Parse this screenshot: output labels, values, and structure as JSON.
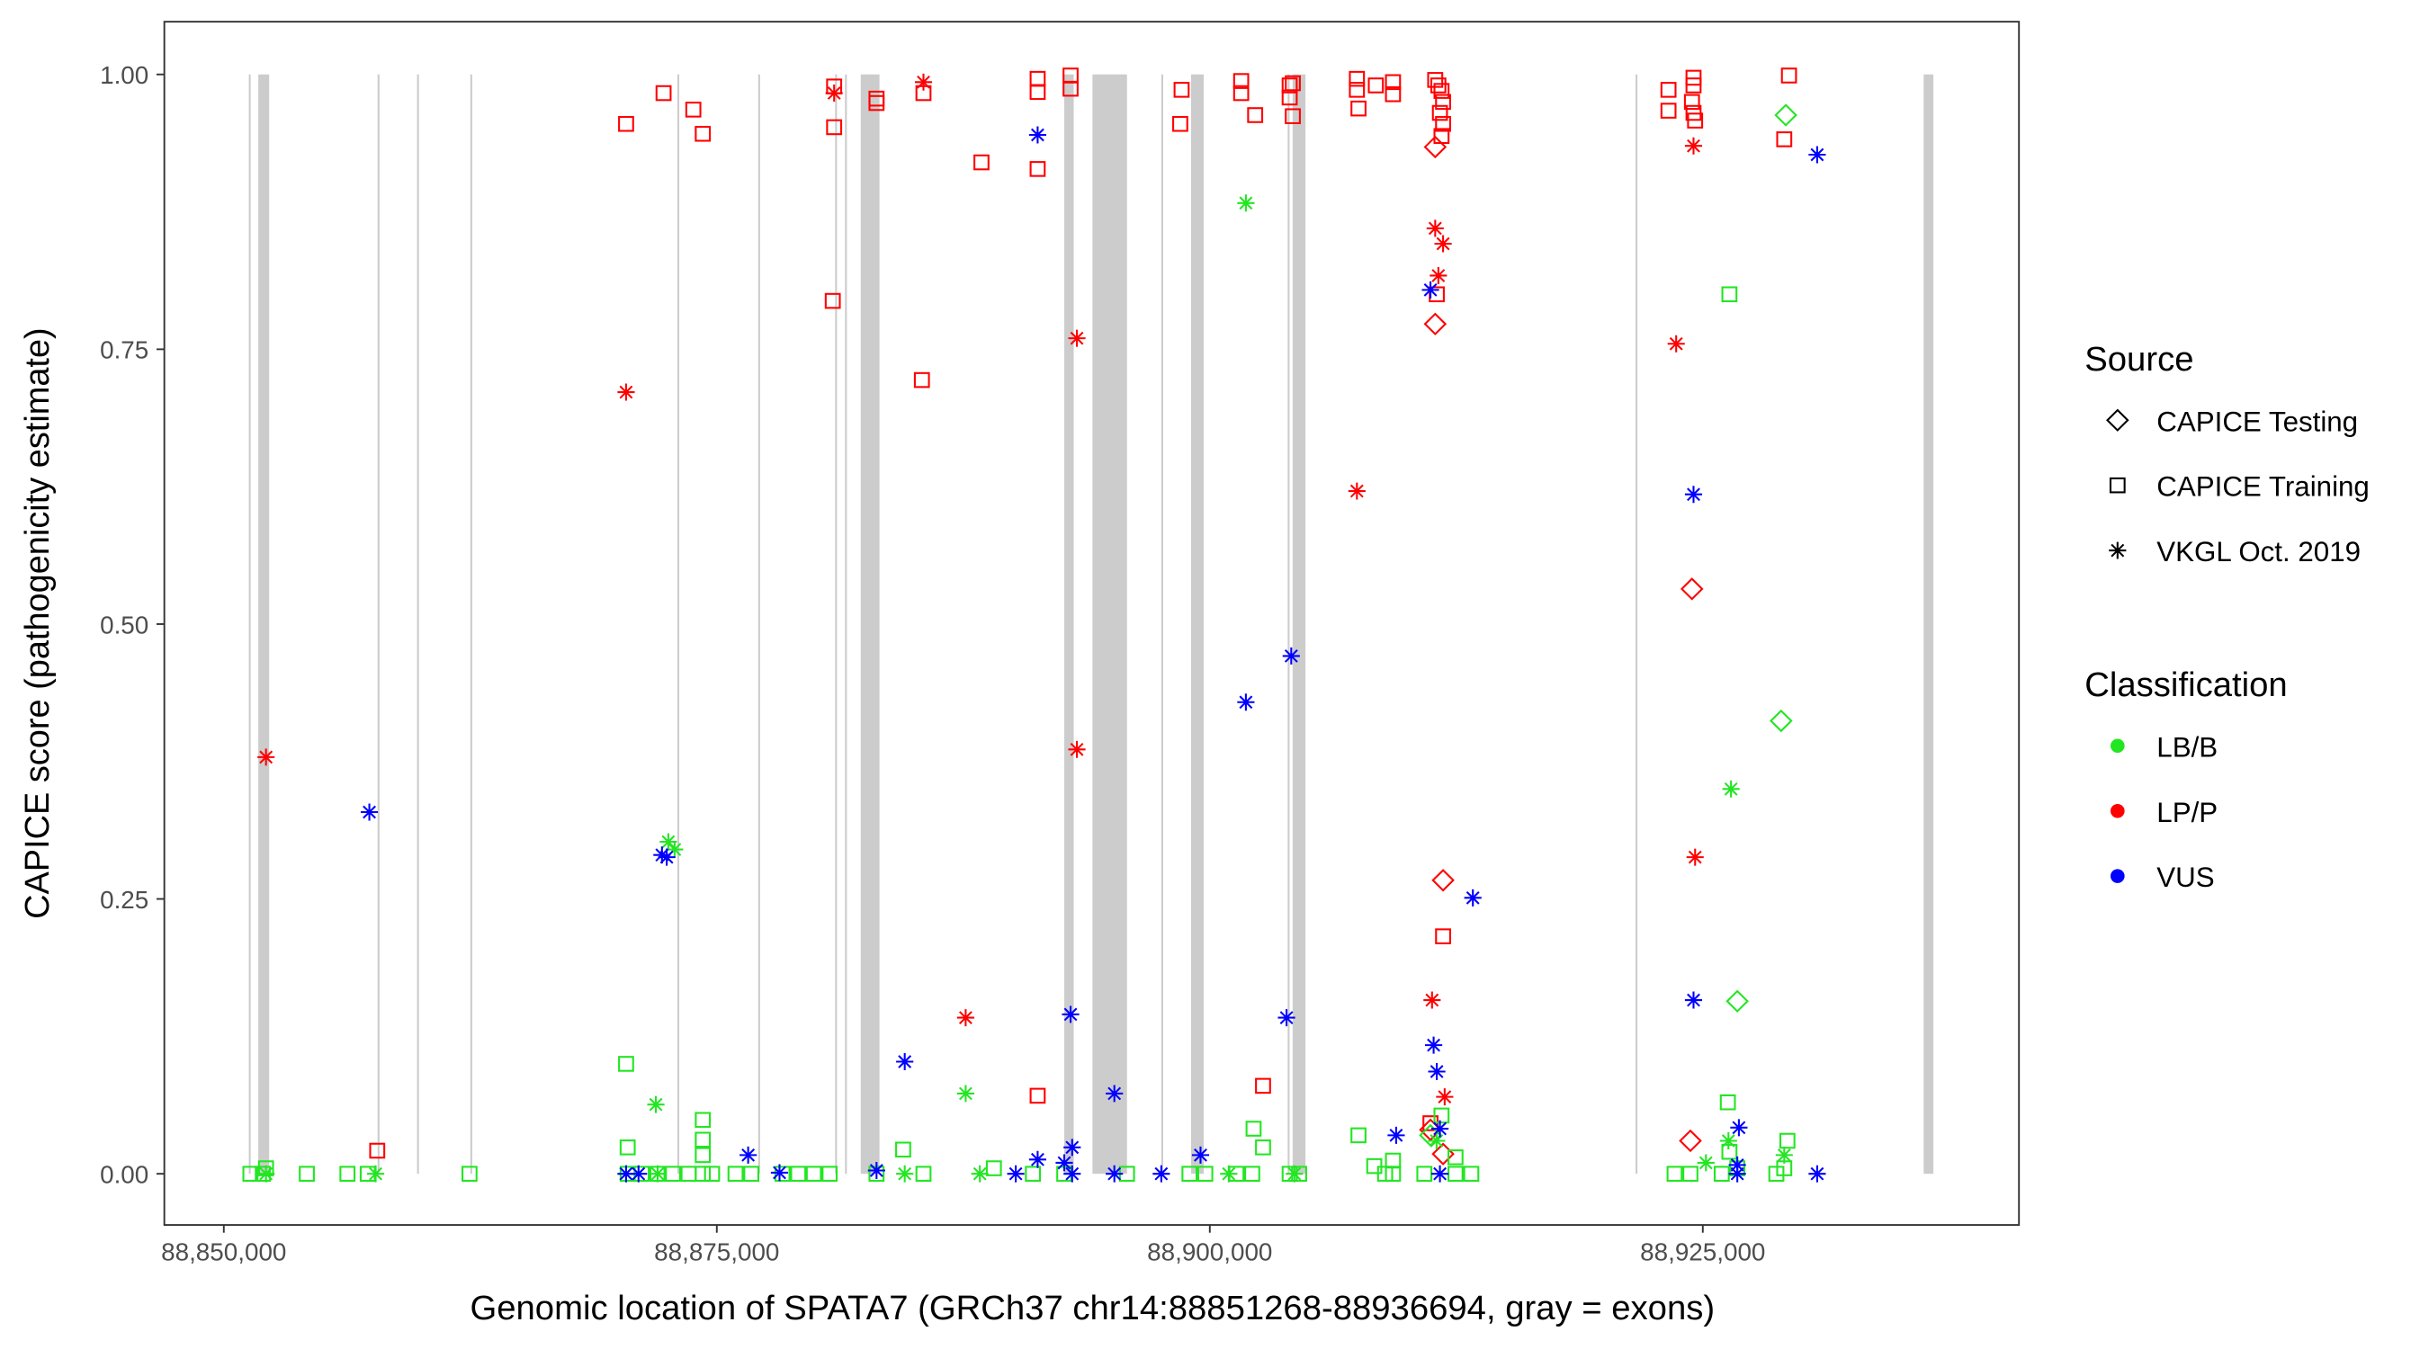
{
  "chart_data": {
    "type": "scatter",
    "xlabel": "Genomic location of SPATA7 (GRCh37 chr14:88851268-88936694, gray = exons)",
    "ylabel": "CAPICE score (pathogenicity estimate)",
    "xlim": [
      88845400,
      88939500
    ],
    "ylim": [
      -0.046,
      1.048
    ],
    "x_ticks": [
      {
        "value": 88850000,
        "label": "88,850,000"
      },
      {
        "value": 88875000,
        "label": "88,875,000"
      },
      {
        "value": 88900000,
        "label": "88,900,000"
      },
      {
        "value": 88925000,
        "label": "88,925,000"
      }
    ],
    "y_ticks": [
      {
        "value": 0,
        "label": "0.00"
      },
      {
        "value": 0.25,
        "label": "0.25"
      },
      {
        "value": 0.5,
        "label": "0.50"
      },
      {
        "value": 0.75,
        "label": "0.75"
      },
      {
        "value": 1,
        "label": "1.00"
      }
    ],
    "grid": false,
    "exons": [
      [
        88851268,
        88851360
      ],
      [
        88851750,
        88852300
      ],
      [
        88857800,
        88857880
      ],
      [
        88859800,
        88859880
      ],
      [
        88862500,
        88862540
      ],
      [
        88873000,
        88873040
      ],
      [
        88877100,
        88877180
      ],
      [
        88881000,
        88881040
      ],
      [
        88881500,
        88881540
      ],
      [
        88882300,
        88883250
      ],
      [
        88892620,
        88893100
      ],
      [
        88894050,
        88895800
      ],
      [
        88897540,
        88897620
      ],
      [
        88899050,
        88899690
      ],
      [
        88903950,
        88904010
      ],
      [
        88904200,
        88904850
      ],
      [
        88921590,
        88921670
      ],
      [
        88936200,
        88936694
      ]
    ],
    "exon_color": "#cccccc",
    "legend": {
      "placement": "right",
      "source_title": "Source",
      "source_items": [
        {
          "label": "CAPICE Testing",
          "shape": "diamond"
        },
        {
          "label": "CAPICE Training",
          "shape": "square"
        },
        {
          "label": "VKGL Oct. 2019",
          "shape": "asterisk"
        }
      ],
      "class_title": "Classification",
      "class_items": [
        {
          "label": "LB/B",
          "color": "#22e622"
        },
        {
          "label": "LP/P",
          "color": "#ff0000"
        },
        {
          "label": "VUS",
          "color": "#0000ff"
        }
      ]
    },
    "series": [
      {
        "source": "CAPICE Training",
        "shape": "square",
        "classification": "LP/P",
        "color": "#ff0000",
        "points": [
          [
            88870400,
            0.955
          ],
          [
            88872300,
            0.983
          ],
          [
            88873810,
            0.968
          ],
          [
            88874290,
            0.946
          ],
          [
            88880950,
            0.989
          ],
          [
            88880950,
            0.952
          ],
          [
            88880880,
            0.794
          ],
          [
            88883100,
            0.978
          ],
          [
            88883100,
            0.974
          ],
          [
            88885480,
            0.983
          ],
          [
            88885400,
            0.722
          ],
          [
            88888420,
            0.92
          ],
          [
            88891270,
            0.996
          ],
          [
            88891270,
            0.984
          ],
          [
            88891270,
            0.914
          ],
          [
            88891270,
            0.071
          ],
          [
            88892940,
            0.999
          ],
          [
            88892940,
            0.987
          ],
          [
            88898570,
            0.986
          ],
          [
            88898500,
            0.955
          ],
          [
            88901590,
            0.994
          ],
          [
            88901590,
            0.983
          ],
          [
            88902300,
            0.963
          ],
          [
            88902700,
            0.08
          ],
          [
            88904050,
            0.99
          ],
          [
            88904210,
            0.992
          ],
          [
            88904050,
            0.979
          ],
          [
            88904210,
            0.962
          ],
          [
            88907460,
            0.996
          ],
          [
            88907460,
            0.986
          ],
          [
            88907540,
            0.969
          ],
          [
            88908420,
            0.99
          ],
          [
            88909290,
            0.993
          ],
          [
            88909290,
            0.982
          ],
          [
            88911430,
            0.995
          ],
          [
            88911590,
            0.99
          ],
          [
            88911750,
            0.985
          ],
          [
            88911830,
            0.975
          ],
          [
            88911670,
            0.965
          ],
          [
            88911830,
            0.955
          ],
          [
            88911750,
            0.944
          ],
          [
            88911510,
            0.8
          ],
          [
            88911830,
            0.216
          ],
          [
            88911190,
            0.046
          ],
          [
            88857780,
            0.021
          ],
          [
            88923260,
            0.986
          ],
          [
            88923260,
            0.967
          ],
          [
            88924530,
            0.997
          ],
          [
            88924530,
            0.99
          ],
          [
            88924450,
            0.975
          ],
          [
            88924530,
            0.965
          ],
          [
            88924610,
            0.958
          ],
          [
            88929370,
            0.999
          ],
          [
            88929130,
            0.941
          ]
        ]
      },
      {
        "source": "VKGL Oct. 2019",
        "shape": "asterisk",
        "classification": "LP/P",
        "color": "#ff0000",
        "points": [
          [
            88852140,
            0.379
          ],
          [
            88870400,
            0.711
          ],
          [
            88880950,
            0.983
          ],
          [
            88885480,
            0.993
          ],
          [
            88887620,
            0.142
          ],
          [
            88893260,
            0.76
          ],
          [
            88893260,
            0.386
          ],
          [
            88907460,
            0.621
          ],
          [
            88911430,
            0.86
          ],
          [
            88911830,
            0.846
          ],
          [
            88911590,
            0.817
          ],
          [
            88911270,
            0.158
          ],
          [
            88911910,
            0.07
          ],
          [
            88923650,
            0.755
          ],
          [
            88924530,
            0.935
          ],
          [
            88924610,
            0.288
          ]
        ]
      },
      {
        "source": "CAPICE Testing",
        "shape": "diamond",
        "classification": "LP/P",
        "color": "#ff0000",
        "points": [
          [
            88911430,
            0.934
          ],
          [
            88911430,
            0.773
          ],
          [
            88911830,
            0.267
          ],
          [
            88911830,
            0.018
          ],
          [
            88911190,
            0.04
          ],
          [
            88924450,
            0.532
          ],
          [
            88924370,
            0.03
          ]
        ]
      },
      {
        "source": "CAPICE Testing",
        "shape": "diamond",
        "classification": "LB/B",
        "color": "#22e622",
        "points": [
          [
            88929210,
            0.963
          ],
          [
            88928970,
            0.412
          ],
          [
            88926750,
            0.157
          ],
          [
            88911190,
            0.035
          ]
        ]
      },
      {
        "source": "VKGL Oct. 2019",
        "shape": "asterisk",
        "classification": "LB/B",
        "color": "#22e622",
        "points": [
          [
            88901830,
            0.883
          ],
          [
            88871910,
            0.063
          ],
          [
            88872540,
            0.302
          ],
          [
            88872860,
            0.295
          ],
          [
            88887620,
            0.073
          ],
          [
            88926430,
            0.35
          ],
          [
            88857700,
            0
          ],
          [
            88870400,
            0
          ],
          [
            88872000,
            0
          ],
          [
            88884530,
            0
          ],
          [
            88888340,
            0
          ],
          [
            88900960,
            0
          ],
          [
            88904290,
            0
          ],
          [
            88911500,
            0.03
          ],
          [
            88925160,
            0.01
          ],
          [
            88926300,
            0.03
          ],
          [
            88929130,
            0.017
          ],
          [
            88852140,
            0
          ]
        ]
      },
      {
        "source": "CAPICE Training",
        "shape": "square",
        "classification": "LB/B",
        "color": "#22e622",
        "points": [
          [
            88870400,
            0.1
          ],
          [
            88870480,
            0.024
          ],
          [
            88874290,
            0.049
          ],
          [
            88874290,
            0.031
          ],
          [
            88874290,
            0.017
          ],
          [
            88884450,
            0.022
          ],
          [
            88902220,
            0.041
          ],
          [
            88902700,
            0.024
          ],
          [
            88907540,
            0.035
          ],
          [
            88908340,
            0.007
          ],
          [
            88909290,
            0.012
          ],
          [
            88911750,
            0.053
          ],
          [
            88926350,
            0.8
          ],
          [
            88926270,
            0.065
          ],
          [
            88929290,
            0.03
          ],
          [
            88926350,
            0.02
          ],
          [
            88912460,
            0.015
          ],
          [
            88851350,
            0
          ],
          [
            88851980,
            0
          ],
          [
            88852140,
            0.005
          ],
          [
            88854210,
            0
          ],
          [
            88856270,
            0
          ],
          [
            88857300,
            0
          ],
          [
            88862460,
            0
          ],
          [
            88870480,
            0
          ],
          [
            88871190,
            0
          ],
          [
            88871990,
            0
          ],
          [
            88872780,
            0
          ],
          [
            88873570,
            0
          ],
          [
            88874290,
            0
          ],
          [
            88874760,
            0
          ],
          [
            88875950,
            0
          ],
          [
            88876750,
            0
          ],
          [
            88878330,
            0
          ],
          [
            88879130,
            0
          ],
          [
            88879920,
            0
          ],
          [
            88880720,
            0
          ],
          [
            88883100,
            0
          ],
          [
            88885480,
            0
          ],
          [
            88889050,
            0.005
          ],
          [
            88891030,
            0
          ],
          [
            88892620,
            0
          ],
          [
            88895800,
            0
          ],
          [
            88898970,
            0
          ],
          [
            88899770,
            0
          ],
          [
            88901350,
            0
          ],
          [
            88902150,
            0
          ],
          [
            88904050,
            0
          ],
          [
            88904530,
            0
          ],
          [
            88908890,
            0
          ],
          [
            88909290,
            0
          ],
          [
            88910880,
            0
          ],
          [
            88912460,
            0
          ],
          [
            88913260,
            0
          ],
          [
            88923570,
            0
          ],
          [
            88924370,
            0
          ],
          [
            88925960,
            0
          ],
          [
            88926750,
            0.005
          ],
          [
            88928730,
            0
          ],
          [
            88929130,
            0.005
          ]
        ]
      },
      {
        "source": "VKGL Oct. 2019",
        "shape": "asterisk",
        "classification": "VUS",
        "color": "#0000ff",
        "points": [
          [
            88857380,
            0.329
          ],
          [
            88872220,
            0.29
          ],
          [
            88872460,
            0.288
          ],
          [
            88876590,
            0.017
          ],
          [
            88878180,
            0.001
          ],
          [
            88870400,
            0
          ],
          [
            88871030,
            0
          ],
          [
            88883100,
            0.003
          ],
          [
            88884530,
            0.102
          ],
          [
            88891270,
            0.945
          ],
          [
            88891270,
            0.013
          ],
          [
            88890160,
            0
          ],
          [
            88892940,
            0.145
          ],
          [
            88893020,
            0.024
          ],
          [
            88892620,
            0.01
          ],
          [
            88893020,
            0
          ],
          [
            88895160,
            0.073
          ],
          [
            88895160,
            0
          ],
          [
            88897540,
            0
          ],
          [
            88899530,
            0.017
          ],
          [
            88901830,
            0.429
          ],
          [
            88904130,
            0.471
          ],
          [
            88903890,
            0.142
          ],
          [
            88909450,
            0.035
          ],
          [
            88911190,
            0.804
          ],
          [
            88911350,
            0.117
          ],
          [
            88911510,
            0.093
          ],
          [
            88911670,
            0.041
          ],
          [
            88911670,
            0
          ],
          [
            88913340,
            0.251
          ],
          [
            88924530,
            0.618
          ],
          [
            88924530,
            0.158
          ],
          [
            88926830,
            0.042
          ],
          [
            88926750,
            0.008
          ],
          [
            88926750,
            0
          ],
          [
            88930800,
            0.927
          ],
          [
            88930800,
            0
          ]
        ]
      }
    ]
  }
}
